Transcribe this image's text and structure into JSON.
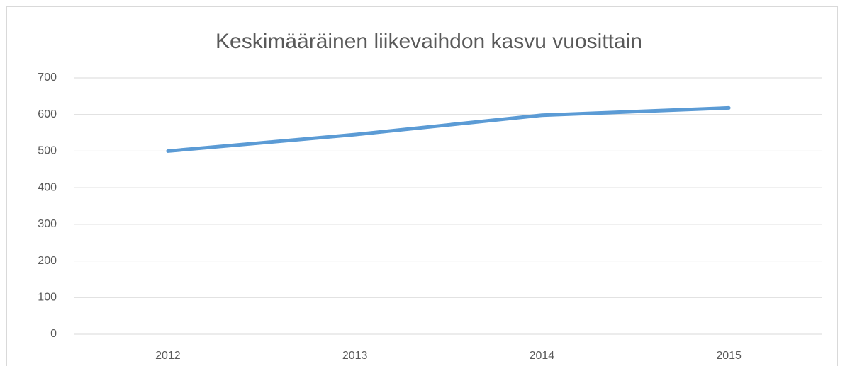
{
  "chart_data": {
    "type": "line",
    "title": "Keskimääräinen liikevaihdon kasvu vuosittain",
    "categories": [
      "2012",
      "2013",
      "2014",
      "2015"
    ],
    "series": [
      {
        "color": "#5b9bd5",
        "values": [
          500,
          545,
          598,
          618
        ]
      }
    ],
    "ylim": [
      0,
      700
    ],
    "yticks": [
      0,
      100,
      200,
      300,
      400,
      500,
      600,
      700
    ],
    "grid": true
  }
}
